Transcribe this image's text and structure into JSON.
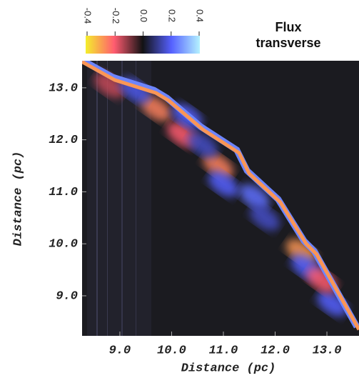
{
  "chart_data": {
    "type": "heatmap",
    "colorbar_title": [
      "Flux",
      "transverse"
    ],
    "cticks": [
      -0.4,
      -0.2,
      {
        "value": 0,
        "label": "0.0"
      },
      0.2,
      0.4
    ],
    "clim": [
      -0.4,
      0.4
    ],
    "colorscale": [
      "#f4ee2c",
      "#ff5c70",
      "#121214",
      "#5560ff",
      "#b4f2ff"
    ],
    "xlabel": "Distance (pc)",
    "ylabel": "Distance (pc)",
    "xlim": [
      8.27,
      13.62
    ],
    "ylim": [
      8.23,
      13.52
    ],
    "xticks": [
      {
        "value": 9,
        "label": "9.0"
      },
      {
        "value": 10,
        "label": "10.0"
      },
      {
        "value": 11,
        "label": "11.0"
      },
      {
        "value": 12,
        "label": "12.0"
      },
      {
        "value": 13,
        "label": "13.0"
      }
    ],
    "yticks": [
      {
        "value": 9,
        "label": "9.0"
      },
      {
        "value": 10,
        "label": "10.0"
      },
      {
        "value": 11,
        "label": "11.0"
      },
      {
        "value": 12,
        "label": "12.0"
      },
      {
        "value": 13,
        "label": "13.0"
      }
    ],
    "front_x": [
      8.27,
      8.9,
      9.7,
      9.95,
      10.6,
      11.3,
      11.5,
      12.1,
      12.6,
      12.8,
      13.62
    ],
    "front_y": [
      13.5,
      13.15,
      12.9,
      12.75,
      12.2,
      11.75,
      11.35,
      10.8,
      10.0,
      9.8,
      8.35
    ],
    "patch_x": [
      8.8,
      9.7,
      10.2,
      10.3,
      10.9,
      11.0,
      11.6,
      11.8,
      12.5,
      12.6,
      13.1,
      9.3,
      10.6,
      12.9
    ],
    "patch_y": [
      13.05,
      12.6,
      12.1,
      12.45,
      11.5,
      11.15,
      10.9,
      10.5,
      9.85,
      9.55,
      8.85,
      12.95,
      11.9,
      9.3
    ],
    "patch_values": [
      -0.15,
      -0.25,
      -0.2,
      0.2,
      -0.25,
      0.2,
      0.22,
      0.15,
      -0.28,
      0.2,
      0.2,
      0.18,
      0.15,
      -0.2
    ]
  }
}
